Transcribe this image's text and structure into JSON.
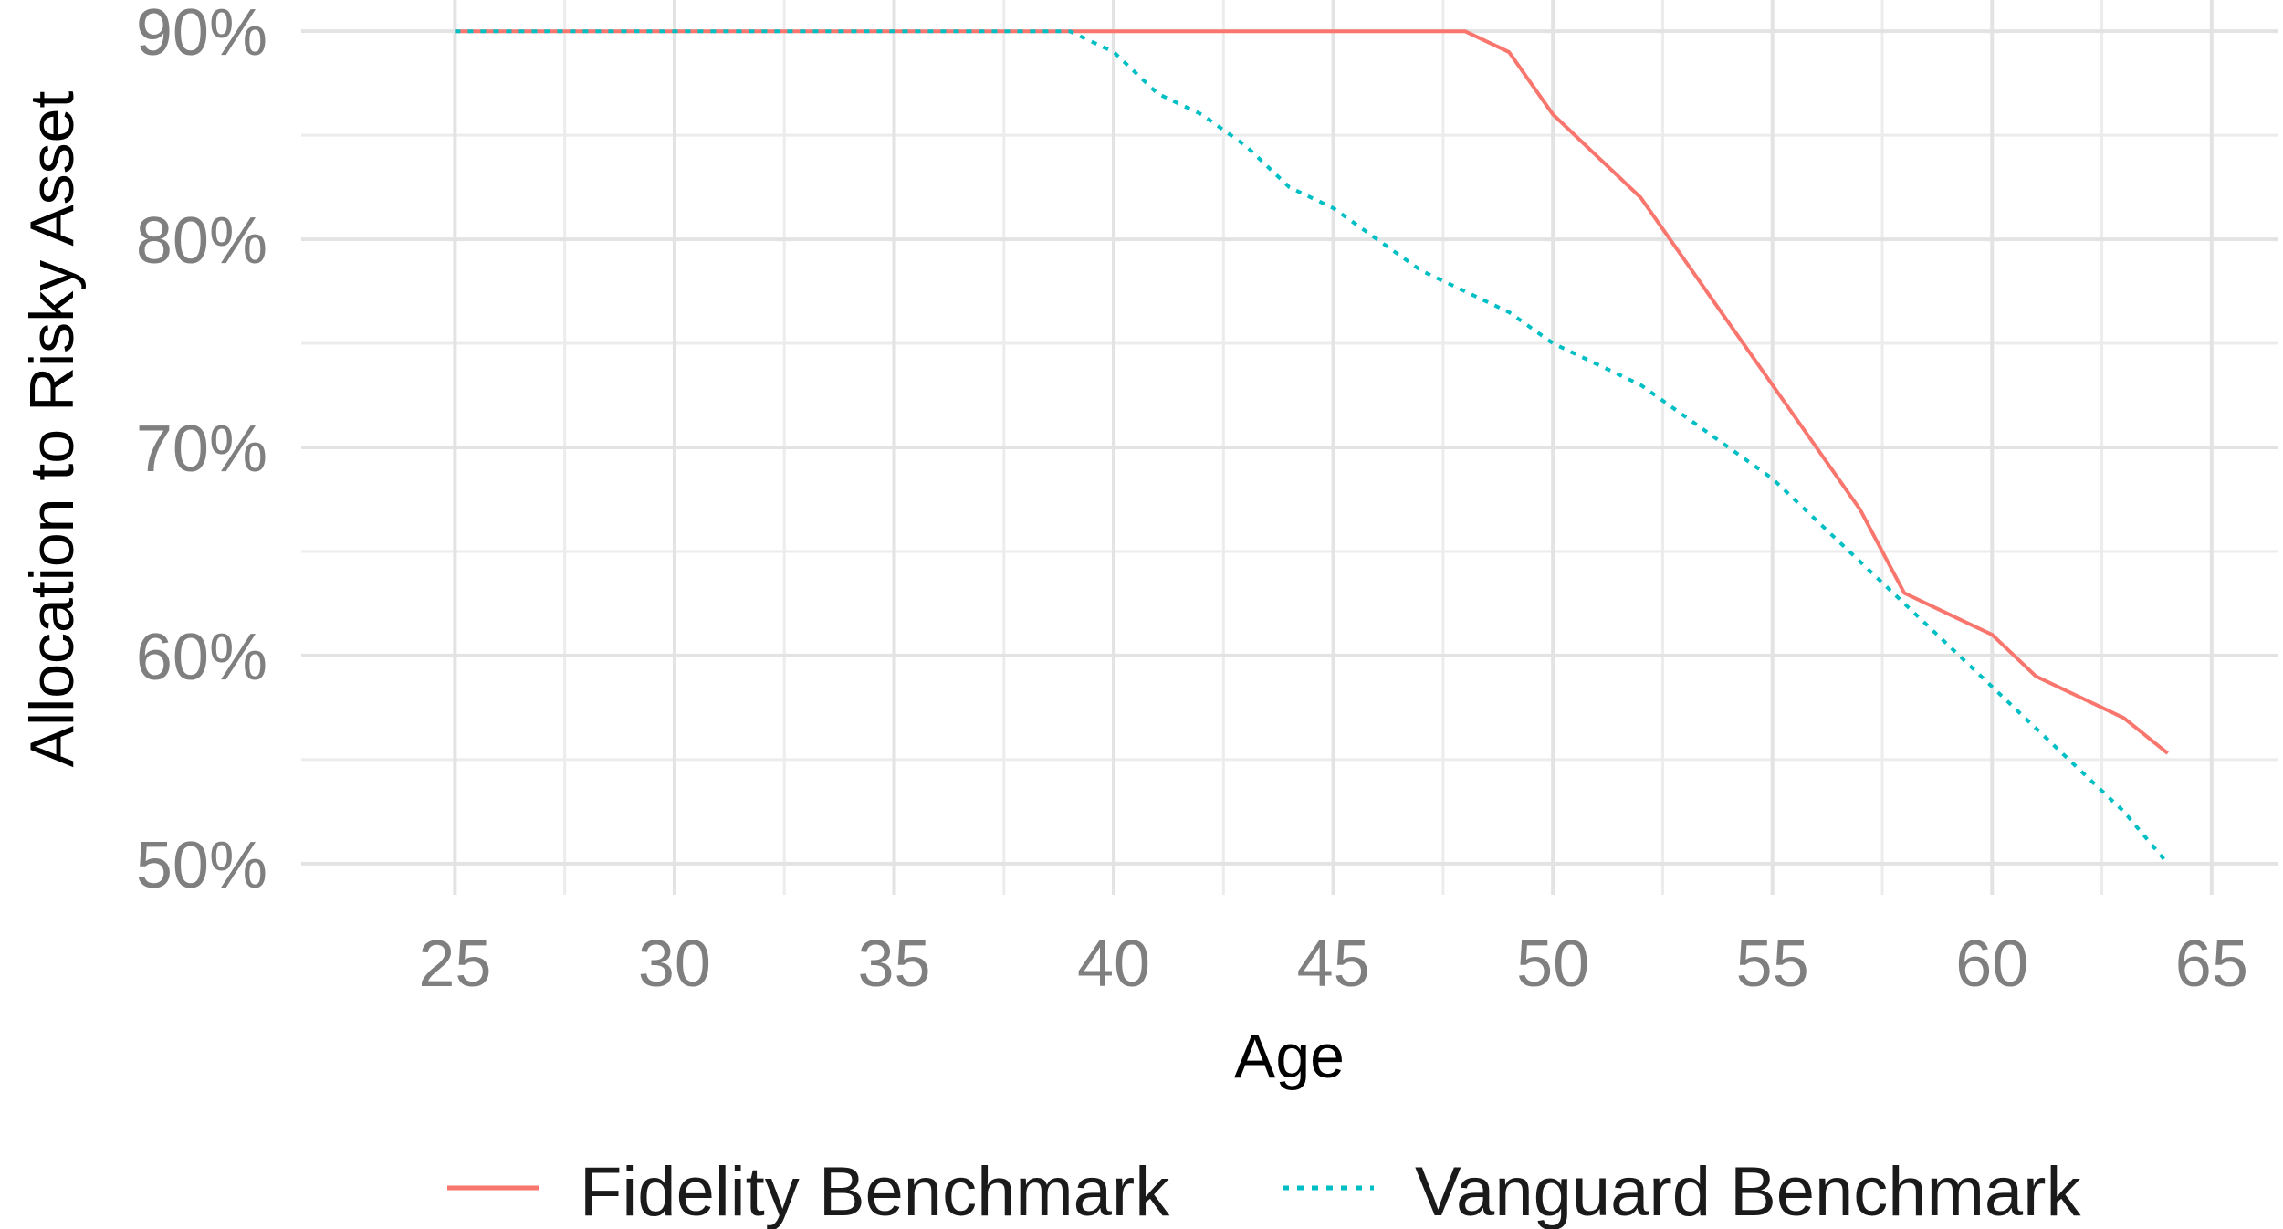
{
  "chart_data": {
    "type": "line",
    "xlabel": "Age",
    "ylabel": "Allocation to Risky Asset",
    "xlim": [
      21.5,
      66.5
    ],
    "ylim": [
      0.485,
      0.915
    ],
    "x_ticks": [
      25,
      30,
      35,
      40,
      45,
      50,
      55,
      60,
      65
    ],
    "x_tick_labels": [
      "25",
      "30",
      "35",
      "40",
      "45",
      "50",
      "55",
      "60",
      "65"
    ],
    "y_ticks": [
      0.5,
      0.6,
      0.7,
      0.8,
      0.9
    ],
    "y_tick_labels": [
      "50%",
      "60%",
      "70%",
      "80%",
      "90%"
    ],
    "grid": true,
    "legend_position": "bottom",
    "x": [
      25,
      26,
      27,
      28,
      29,
      30,
      31,
      32,
      33,
      34,
      35,
      36,
      37,
      38,
      39,
      40,
      41,
      42,
      43,
      44,
      45,
      46,
      47,
      48,
      49,
      50,
      51,
      52,
      53,
      54,
      55,
      56,
      57,
      58,
      59,
      60,
      61,
      62,
      63,
      64
    ],
    "series": [
      {
        "name": "Fidelity Benchmark",
        "color": "#F8766D",
        "line_style": "solid",
        "values": [
          0.9,
          0.9,
          0.9,
          0.9,
          0.9,
          0.9,
          0.9,
          0.9,
          0.9,
          0.9,
          0.9,
          0.9,
          0.9,
          0.9,
          0.9,
          0.9,
          0.9,
          0.9,
          0.9,
          0.9,
          0.9,
          0.9,
          0.9,
          0.9,
          0.89,
          0.86,
          0.84,
          0.82,
          0.79,
          0.76,
          0.73,
          0.7,
          0.67,
          0.63,
          0.62,
          0.61,
          0.59,
          0.58,
          0.57,
          0.553
        ]
      },
      {
        "name": "Vanguard Benchmark",
        "color": "#00BFC4",
        "line_style": "dotted",
        "values": [
          0.9,
          0.9,
          0.9,
          0.9,
          0.9,
          0.9,
          0.9,
          0.9,
          0.9,
          0.9,
          0.9,
          0.9,
          0.9,
          0.9,
          0.9,
          0.89,
          0.87,
          0.86,
          0.845,
          0.825,
          0.815,
          0.8,
          0.785,
          0.775,
          0.765,
          0.75,
          0.74,
          0.73,
          0.715,
          0.7,
          0.685,
          0.665,
          0.645,
          0.625,
          0.605,
          0.585,
          0.565,
          0.545,
          0.525,
          0.5
        ]
      }
    ]
  }
}
